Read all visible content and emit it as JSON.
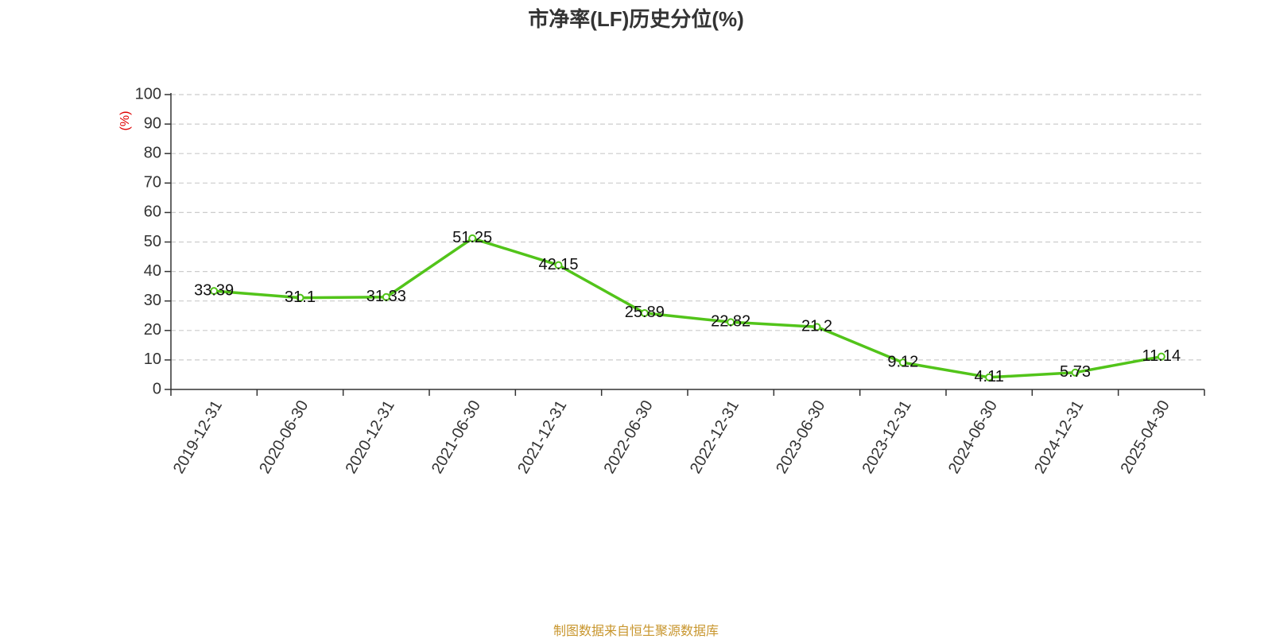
{
  "chart_data": {
    "type": "line",
    "title": "市净率(LF)历史分位(%)",
    "ylabel": "(%)",
    "xlabel": "",
    "categories": [
      "2019-12-31",
      "2020-06-30",
      "2020-12-31",
      "2021-06-30",
      "2021-12-31",
      "2022-06-30",
      "2022-12-31",
      "2023-06-30",
      "2023-12-31",
      "2024-06-30",
      "2024-12-31",
      "2025-04-30"
    ],
    "series": [
      {
        "values": [
          33.39,
          31.1,
          31.33,
          51.25,
          42.15,
          25.89,
          22.82,
          21.2,
          9.12,
          4.11,
          5.73,
          11.14
        ]
      }
    ],
    "data_labels": [
      "33.39",
      "31.1",
      "31.33",
      "51.25",
      "42.15",
      "25.89",
      "22.82",
      "21.2",
      "9.12",
      "4.11",
      "5.73",
      "11.14"
    ],
    "ylim": [
      0,
      100
    ],
    "yticks": [
      0,
      10,
      20,
      30,
      40,
      50,
      60,
      70,
      80,
      90,
      100
    ],
    "grid": true,
    "legend": "none"
  },
  "colors": {
    "line": "#52c41a",
    "ylabel": "#e00000",
    "grid": "#cccccc",
    "axis": "#333333",
    "source": "#c8962e"
  },
  "footer": {
    "source": "制图数据来自恒生聚源数据库"
  }
}
